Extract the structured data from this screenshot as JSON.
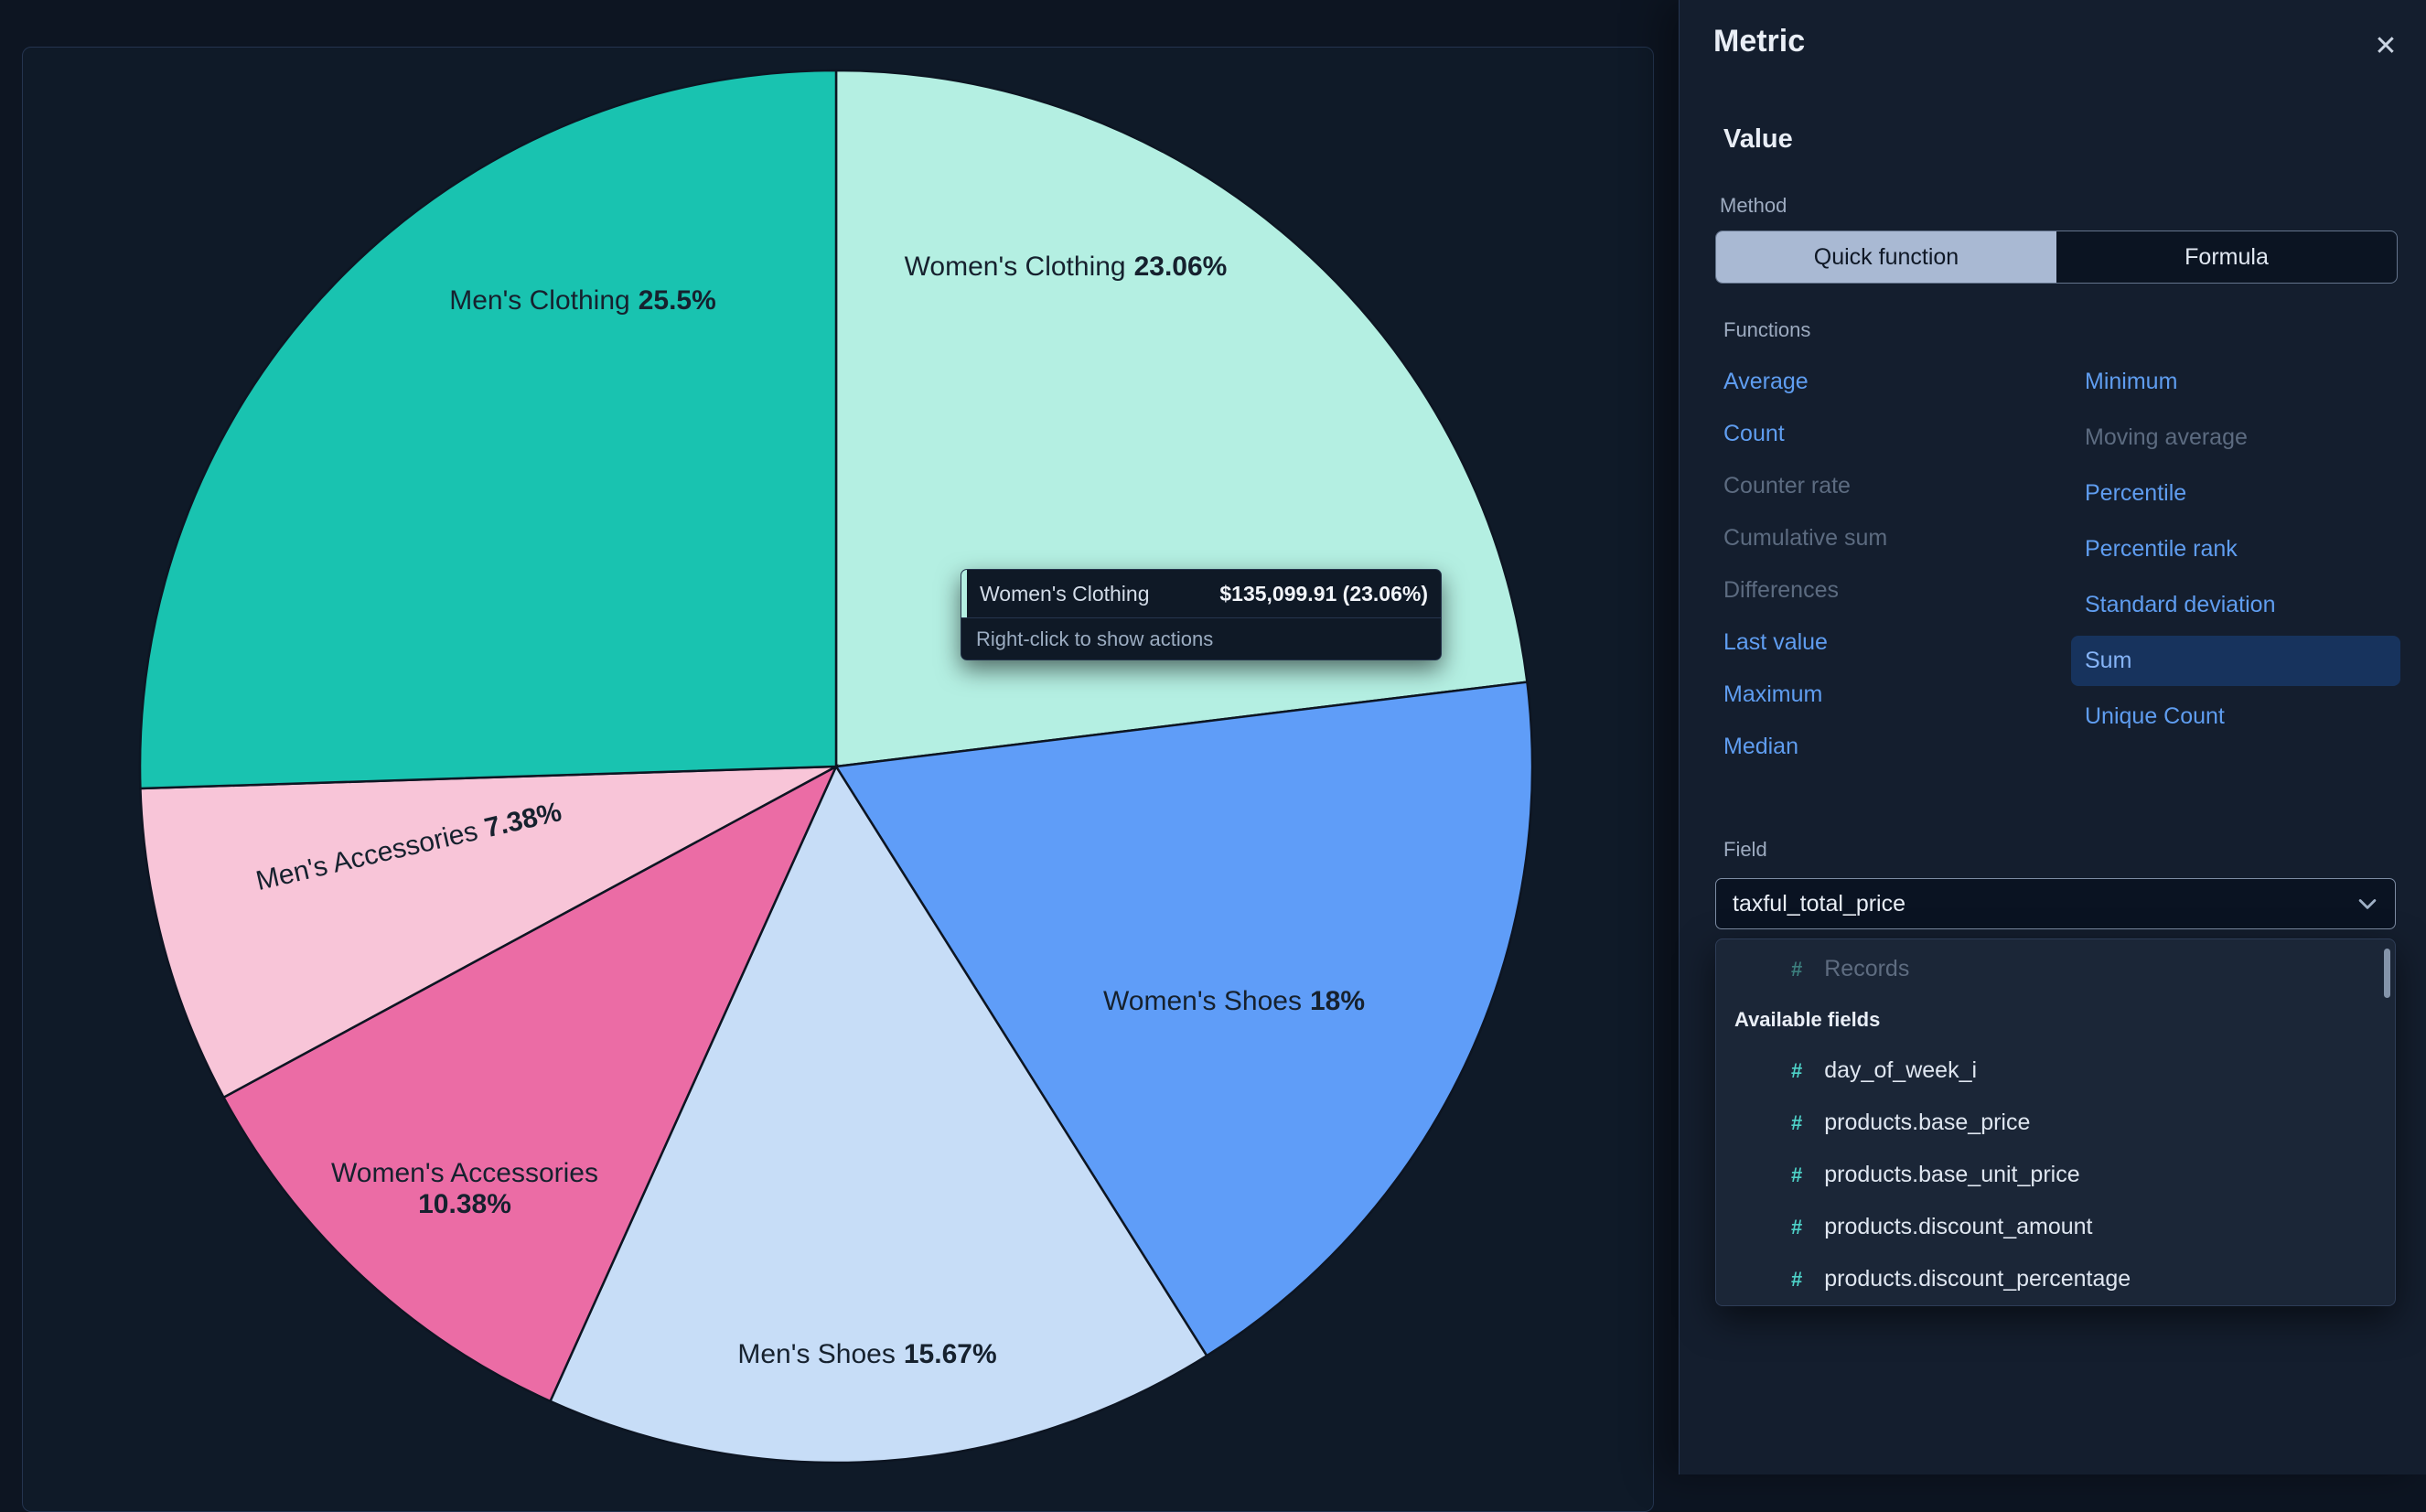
{
  "chart_data": {
    "type": "pie",
    "order": "clockwise-from-top",
    "slices": [
      {
        "label": "Women's Clothing",
        "value": 23.06,
        "pct_label": "23.06%",
        "color": "#b4efe2"
      },
      {
        "label": "Women's Shoes",
        "value": 18,
        "pct_label": "18%",
        "color": "#5f9df8"
      },
      {
        "label": "Men's Shoes",
        "value": 15.67,
        "pct_label": "15.67%",
        "color": "#c7ddf7"
      },
      {
        "label": "Women's Accessories",
        "value": 10.38,
        "pct_label": "10.38%",
        "color": "#eb6ca5"
      },
      {
        "label": "Men's Accessories",
        "value": 7.38,
        "pct_label": "7.38%",
        "color": "#f8c5d8"
      },
      {
        "label": "Men's Clothing",
        "value": 25.5,
        "pct_label": "25.5%",
        "color": "#19c3b0"
      }
    ]
  },
  "tooltip": {
    "series": "Women's Clothing",
    "value": "$135,099.91 (23.06%)",
    "hint": "Right-click to show actions",
    "accent_color": "#b4efe2"
  },
  "flyout": {
    "title": "Metric",
    "close_icon": "✕",
    "section_value": "Value",
    "method_label": "Method",
    "method_options": [
      {
        "label": "Quick function",
        "selected": true
      },
      {
        "label": "Formula",
        "selected": false
      }
    ],
    "functions_label": "Functions",
    "functions_col1": [
      {
        "label": "Average",
        "state": "enabled"
      },
      {
        "label": "Count",
        "state": "enabled"
      },
      {
        "label": "Counter rate",
        "state": "disabled"
      },
      {
        "label": "Cumulative sum",
        "state": "disabled"
      },
      {
        "label": "Differences",
        "state": "disabled"
      },
      {
        "label": "Last value",
        "state": "enabled"
      },
      {
        "label": "Maximum",
        "state": "enabled"
      },
      {
        "label": "Median",
        "state": "enabled"
      }
    ],
    "functions_col2": [
      {
        "label": "Minimum",
        "state": "enabled"
      },
      {
        "label": "Moving average",
        "state": "disabled"
      },
      {
        "label": "Percentile",
        "state": "enabled"
      },
      {
        "label": "Percentile rank",
        "state": "enabled"
      },
      {
        "label": "Standard deviation",
        "state": "enabled"
      },
      {
        "label": "Sum",
        "state": "selected"
      },
      {
        "label": "Unique Count",
        "state": "enabled"
      }
    ],
    "field_label": "Field",
    "field_value": "taxful_total_price",
    "dropdown": {
      "top_option": {
        "icon": "#",
        "label": "Records"
      },
      "group_label": "Available fields",
      "options": [
        {
          "icon": "#",
          "label": "day_of_week_i"
        },
        {
          "icon": "#",
          "label": "products.base_price"
        },
        {
          "icon": "#",
          "label": "products.base_unit_price"
        },
        {
          "icon": "#",
          "label": "products.discount_amount"
        },
        {
          "icon": "#",
          "label": "products.discount_percentage"
        }
      ]
    }
  }
}
